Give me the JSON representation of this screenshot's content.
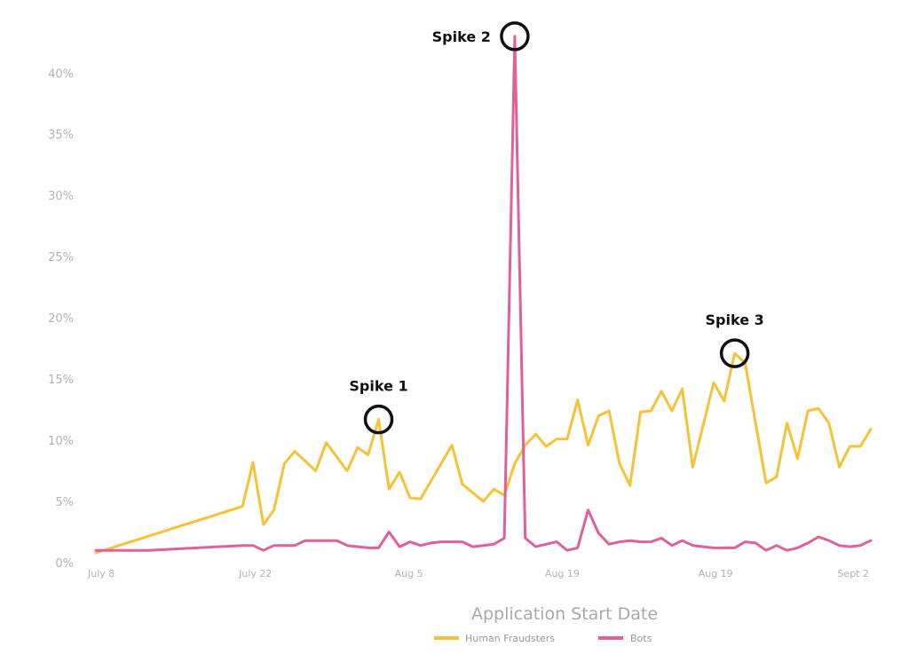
{
  "chart_data": {
    "type": "line",
    "title": "",
    "xlabel": "Application Start Date",
    "ylabel": "",
    "x_tick_labels": [
      "July 8",
      "July 22",
      "Aug 5",
      "Aug 19",
      "Aug 19",
      "Sept 2"
    ],
    "y_ticks": [
      "0%",
      "5%",
      "10%",
      "15%",
      "20%",
      "25%",
      "30%",
      "35%",
      "40%"
    ],
    "ylim": [
      0,
      43.5
    ],
    "grid": false,
    "legend_position": "bottom",
    "series": [
      {
        "name": "Human Fraudsters",
        "color": "#f7c237",
        "points": [
          [
            0,
            0.8
          ],
          [
            14,
            4.6
          ],
          [
            15,
            8.2
          ],
          [
            16,
            3.1
          ],
          [
            17,
            4.3
          ],
          [
            18,
            8.1
          ],
          [
            19,
            9.1
          ],
          [
            21,
            7.5
          ],
          [
            22,
            9.8
          ],
          [
            24,
            7.5
          ],
          [
            25,
            9.4
          ],
          [
            26,
            8.8
          ],
          [
            27,
            11.7
          ],
          [
            28,
            6.0
          ],
          [
            29,
            7.4
          ],
          [
            30,
            5.3
          ],
          [
            31,
            5.2
          ],
          [
            34,
            9.6
          ],
          [
            35,
            6.4
          ],
          [
            37,
            5.0
          ],
          [
            38,
            6.0
          ],
          [
            39,
            5.5
          ],
          [
            40,
            8.1
          ],
          [
            41,
            9.6
          ],
          [
            42,
            10.5
          ],
          [
            43,
            9.5
          ],
          [
            44,
            10.1
          ],
          [
            45,
            10.1
          ],
          [
            46,
            13.3
          ],
          [
            47,
            9.6
          ],
          [
            48,
            12.0
          ],
          [
            49,
            12.4
          ],
          [
            50,
            8.1
          ],
          [
            51,
            6.3
          ],
          [
            52,
            12.3
          ],
          [
            53,
            12.4
          ],
          [
            54,
            14.0
          ],
          [
            55,
            12.4
          ],
          [
            56,
            14.2
          ],
          [
            57,
            7.8
          ],
          [
            59,
            14.7
          ],
          [
            60,
            13.2
          ],
          [
            61,
            17.1
          ],
          [
            62,
            16.3
          ],
          [
            64,
            6.5
          ],
          [
            65,
            7.0
          ],
          [
            66,
            11.4
          ],
          [
            67,
            8.5
          ],
          [
            68,
            12.4
          ],
          [
            69,
            12.6
          ],
          [
            70,
            11.4
          ],
          [
            71,
            7.8
          ],
          [
            72,
            9.5
          ],
          [
            73,
            9.5
          ],
          [
            74,
            10.9
          ]
        ]
      },
      {
        "name": "Bots",
        "color": "#e0609a",
        "points": [
          [
            0,
            1.0
          ],
          [
            5,
            1.0
          ],
          [
            14,
            1.4
          ],
          [
            15,
            1.4
          ],
          [
            16,
            1.0
          ],
          [
            17,
            1.4
          ],
          [
            18,
            1.4
          ],
          [
            19,
            1.4
          ],
          [
            20,
            1.8
          ],
          [
            21,
            1.8
          ],
          [
            22,
            1.8
          ],
          [
            23,
            1.8
          ],
          [
            24,
            1.4
          ],
          [
            26,
            1.2
          ],
          [
            27,
            1.2
          ],
          [
            28,
            2.5
          ],
          [
            29,
            1.3
          ],
          [
            30,
            1.7
          ],
          [
            31,
            1.4
          ],
          [
            32,
            1.6
          ],
          [
            33,
            1.7
          ],
          [
            34,
            1.7
          ],
          [
            35,
            1.7
          ],
          [
            36,
            1.3
          ],
          [
            37,
            1.4
          ],
          [
            38,
            1.5
          ],
          [
            39,
            2.0
          ],
          [
            40,
            43.0
          ],
          [
            41,
            2.0
          ],
          [
            42,
            1.3
          ],
          [
            43,
            1.5
          ],
          [
            44,
            1.7
          ],
          [
            45,
            1.0
          ],
          [
            46,
            1.2
          ],
          [
            47,
            4.3
          ],
          [
            48,
            2.4
          ],
          [
            49,
            1.5
          ],
          [
            50,
            1.7
          ],
          [
            51,
            1.8
          ],
          [
            52,
            1.7
          ],
          [
            53,
            1.7
          ],
          [
            54,
            2.0
          ],
          [
            55,
            1.4
          ],
          [
            56,
            1.8
          ],
          [
            57,
            1.4
          ],
          [
            58,
            1.3
          ],
          [
            59,
            1.2
          ],
          [
            60,
            1.2
          ],
          [
            61,
            1.2
          ],
          [
            62,
            1.7
          ],
          [
            63,
            1.6
          ],
          [
            64,
            1.0
          ],
          [
            65,
            1.4
          ],
          [
            66,
            1.0
          ],
          [
            67,
            1.2
          ],
          [
            68,
            1.6
          ],
          [
            69,
            2.1
          ],
          [
            70,
            1.8
          ],
          [
            71,
            1.4
          ],
          [
            72,
            1.3
          ],
          [
            73,
            1.4
          ],
          [
            74,
            1.8
          ]
        ]
      }
    ],
    "annotations": [
      {
        "label": "Spike 1",
        "series": 0,
        "x": 27,
        "y": 11.7
      },
      {
        "label": "Spike 2",
        "series": 1,
        "x": 40,
        "y": 43.0
      },
      {
        "label": "Spike 3",
        "series": 0,
        "x": 61,
        "y": 17.1
      }
    ]
  }
}
